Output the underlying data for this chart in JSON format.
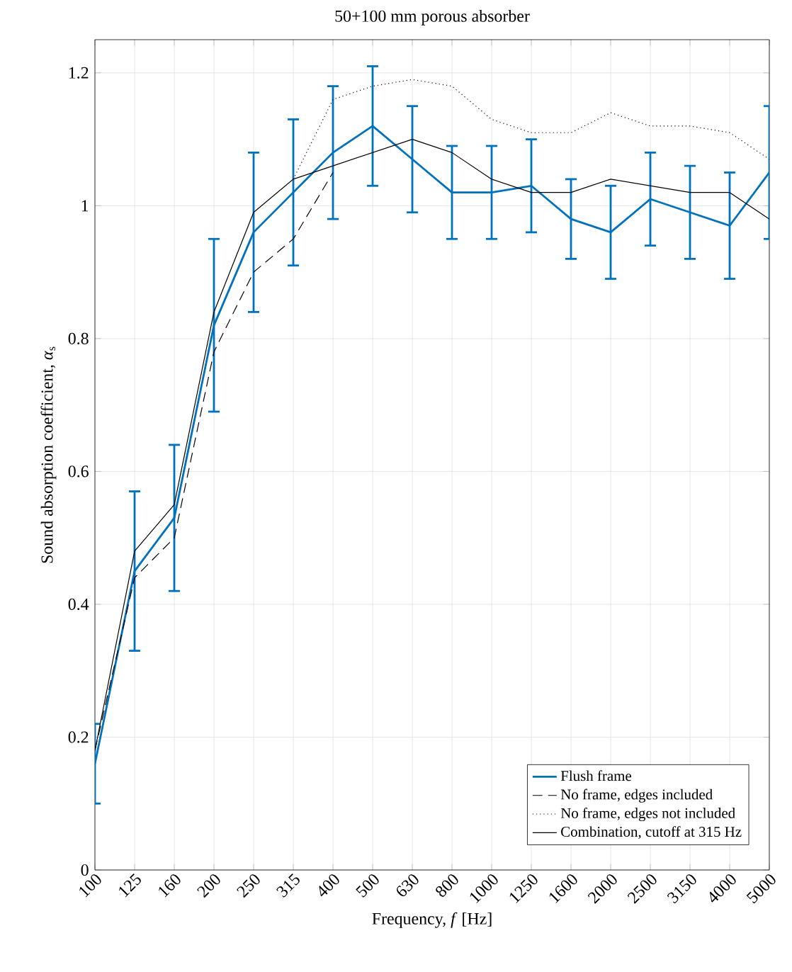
{
  "chart_data": {
    "type": "line",
    "title": "50+100 mm porous absorber",
    "xlabel": "Frequency, *f* [Hz]",
    "ylabel": "Sound absorption coefficient, *α*$_{s}$",
    "categories": [
      "100",
      "125",
      "160",
      "200",
      "250",
      "315",
      "400",
      "500",
      "630",
      "800",
      "1000",
      "1250",
      "1600",
      "2000",
      "2500",
      "3150",
      "4000",
      "5000"
    ],
    "series": [
      {
        "name": "Flush frame",
        "color": "#0072bd",
        "line_style": "solid",
        "values": [
          0.16,
          0.45,
          0.53,
          0.82,
          0.96,
          1.02,
          1.08,
          1.12,
          1.07,
          1.02,
          1.02,
          1.03,
          0.98,
          0.96,
          1.01,
          0.99,
          0.97,
          1.05
        ],
        "errors": [
          0.06,
          0.12,
          0.11,
          0.13,
          0.12,
          0.11,
          0.1,
          0.09,
          0.08,
          0.07,
          0.07,
          0.07,
          0.06,
          0.07,
          0.07,
          0.07,
          0.08,
          0.1
        ]
      },
      {
        "name": "No frame, edges included",
        "color": "#000000",
        "line_style": "dashed",
        "values": [
          0.18,
          0.44,
          0.5,
          0.78,
          0.9,
          0.95,
          1.05,
          null,
          null,
          null,
          null,
          null,
          null,
          null,
          null,
          null,
          null,
          null
        ]
      },
      {
        "name": "No frame, edges not included",
        "color": "#000000",
        "line_style": "dotted",
        "values": [
          null,
          null,
          null,
          null,
          null,
          1.04,
          1.16,
          1.18,
          1.19,
          1.18,
          1.13,
          1.11,
          1.11,
          1.14,
          1.12,
          1.12,
          1.11,
          1.07
        ]
      },
      {
        "name": "Combination, cutoff at 315 Hz",
        "color": "#000000",
        "line_style": "solid",
        "values": [
          0.18,
          0.48,
          0.55,
          0.84,
          0.99,
          1.04,
          1.06,
          1.08,
          1.1,
          1.08,
          1.04,
          1.02,
          1.02,
          1.04,
          1.03,
          1.02,
          1.02,
          0.98
        ]
      }
    ],
    "ylim": [
      0,
      1.25
    ],
    "yticks": [
      0,
      0.2,
      0.4,
      0.6,
      0.8,
      1,
      1.2
    ],
    "grid": true,
    "legend": "bottom right"
  }
}
